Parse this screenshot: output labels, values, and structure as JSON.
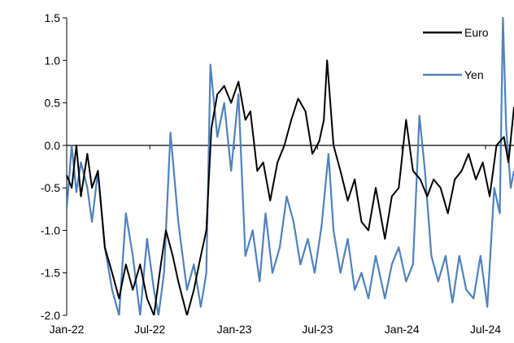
{
  "chart_data": {
    "type": "line",
    "title": "",
    "xlabel": "",
    "ylabel": "",
    "ylim": [
      -2.0,
      1.5
    ],
    "yticks": [
      1.5,
      1.0,
      0.5,
      0.0,
      -0.5,
      -1.0,
      -1.5,
      -2.0
    ],
    "ytick_labels": [
      "1.5",
      "1.0",
      "0.5",
      "0.0",
      "-0.5",
      "-1.0",
      "-1.5",
      "-2.0"
    ],
    "xlim": [
      "2022-01-01",
      "2024-09-01"
    ],
    "xticks": [
      "2022-01-01",
      "2022-07-01",
      "2023-01-01",
      "2023-07-01",
      "2024-01-01",
      "2024-07-01"
    ],
    "xtick_labels": [
      "Jan-22",
      "Jul-22",
      "Jan-23",
      "Jul-23",
      "Jan-24",
      "Jul-24"
    ],
    "zero_line": true,
    "grid": false,
    "legend": "top-right",
    "series": [
      {
        "name": "Euro",
        "color": "#000000",
        "points": [
          [
            "2022-01-01",
            -0.35
          ],
          [
            "2022-01-12",
            -0.5
          ],
          [
            "2022-01-22",
            0.0
          ],
          [
            "2022-02-01",
            -0.6
          ],
          [
            "2022-02-15",
            -0.1
          ],
          [
            "2022-02-25",
            -0.5
          ],
          [
            "2022-03-10",
            -0.3
          ],
          [
            "2022-03-25",
            -1.2
          ],
          [
            "2022-04-10",
            -1.5
          ],
          [
            "2022-04-25",
            -1.8
          ],
          [
            "2022-05-10",
            -1.4
          ],
          [
            "2022-05-25",
            -1.7
          ],
          [
            "2022-06-10",
            -1.4
          ],
          [
            "2022-06-25",
            -1.8
          ],
          [
            "2022-07-10",
            -2.0
          ],
          [
            "2022-07-25",
            -1.4
          ],
          [
            "2022-08-05",
            -1.0
          ],
          [
            "2022-08-20",
            -1.3
          ],
          [
            "2022-09-01",
            -1.6
          ],
          [
            "2022-09-20",
            -2.0
          ],
          [
            "2022-10-05",
            -1.7
          ],
          [
            "2022-10-20",
            -1.3
          ],
          [
            "2022-11-01",
            -1.0
          ],
          [
            "2022-11-12",
            0.2
          ],
          [
            "2022-11-25",
            0.6
          ],
          [
            "2022-12-10",
            0.7
          ],
          [
            "2022-12-25",
            0.5
          ],
          [
            "2023-01-10",
            0.75
          ],
          [
            "2023-01-25",
            0.3
          ],
          [
            "2023-02-05",
            0.4
          ],
          [
            "2023-02-20",
            -0.3
          ],
          [
            "2023-03-05",
            -0.2
          ],
          [
            "2023-03-20",
            -0.65
          ],
          [
            "2023-04-05",
            -0.2
          ],
          [
            "2023-04-20",
            0.0
          ],
          [
            "2023-05-05",
            0.3
          ],
          [
            "2023-05-20",
            0.55
          ],
          [
            "2023-06-05",
            0.4
          ],
          [
            "2023-06-20",
            -0.1
          ],
          [
            "2023-07-05",
            0.05
          ],
          [
            "2023-07-15",
            0.3
          ],
          [
            "2023-07-22",
            1.0
          ],
          [
            "2023-08-05",
            0.0
          ],
          [
            "2023-08-20",
            -0.3
          ],
          [
            "2023-09-05",
            -0.65
          ],
          [
            "2023-09-20",
            -0.4
          ],
          [
            "2023-10-05",
            -0.9
          ],
          [
            "2023-10-20",
            -1.0
          ],
          [
            "2023-11-05",
            -0.5
          ],
          [
            "2023-11-25",
            -1.1
          ],
          [
            "2023-12-10",
            -0.6
          ],
          [
            "2023-12-25",
            -0.5
          ],
          [
            "2024-01-10",
            0.3
          ],
          [
            "2024-01-25",
            -0.3
          ],
          [
            "2024-02-10",
            -0.4
          ],
          [
            "2024-02-25",
            -0.6
          ],
          [
            "2024-03-10",
            -0.4
          ],
          [
            "2024-03-25",
            -0.5
          ],
          [
            "2024-04-10",
            -0.8
          ],
          [
            "2024-04-25",
            -0.4
          ],
          [
            "2024-05-10",
            -0.3
          ],
          [
            "2024-05-25",
            -0.1
          ],
          [
            "2024-06-10",
            -0.4
          ],
          [
            "2024-06-25",
            -0.2
          ],
          [
            "2024-07-10",
            -0.6
          ],
          [
            "2024-07-25",
            0.0
          ],
          [
            "2024-08-10",
            0.1
          ],
          [
            "2024-08-20",
            -0.2
          ],
          [
            "2024-09-01",
            0.45
          ]
        ]
      },
      {
        "name": "Yen",
        "color": "#4f81bd",
        "points": [
          [
            "2022-01-01",
            -0.75
          ],
          [
            "2022-01-12",
            0.0
          ],
          [
            "2022-01-22",
            -0.55
          ],
          [
            "2022-02-01",
            -0.2
          ],
          [
            "2022-02-15",
            -0.5
          ],
          [
            "2022-02-25",
            -0.9
          ],
          [
            "2022-03-10",
            -0.3
          ],
          [
            "2022-03-25",
            -1.2
          ],
          [
            "2022-04-10",
            -1.7
          ],
          [
            "2022-04-25",
            -2.0
          ],
          [
            "2022-05-10",
            -0.8
          ],
          [
            "2022-05-25",
            -1.3
          ],
          [
            "2022-06-10",
            -2.0
          ],
          [
            "2022-06-25",
            -1.1
          ],
          [
            "2022-07-10",
            -1.7
          ],
          [
            "2022-07-20",
            -2.0
          ],
          [
            "2022-08-01",
            -1.5
          ],
          [
            "2022-08-15",
            0.15
          ],
          [
            "2022-09-01",
            -0.9
          ],
          [
            "2022-09-20",
            -1.7
          ],
          [
            "2022-10-05",
            -1.4
          ],
          [
            "2022-10-20",
            -1.9
          ],
          [
            "2022-11-01",
            -1.5
          ],
          [
            "2022-11-10",
            0.95
          ],
          [
            "2022-11-25",
            0.1
          ],
          [
            "2022-12-10",
            0.5
          ],
          [
            "2022-12-25",
            -0.3
          ],
          [
            "2023-01-10",
            0.6
          ],
          [
            "2023-01-25",
            -1.3
          ],
          [
            "2023-02-10",
            -1.0
          ],
          [
            "2023-02-25",
            -1.6
          ],
          [
            "2023-03-10",
            -0.8
          ],
          [
            "2023-03-25",
            -1.5
          ],
          [
            "2023-04-10",
            -1.2
          ],
          [
            "2023-04-25",
            -0.6
          ],
          [
            "2023-05-10",
            -0.9
          ],
          [
            "2023-05-25",
            -1.4
          ],
          [
            "2023-06-10",
            -1.1
          ],
          [
            "2023-06-25",
            -1.5
          ],
          [
            "2023-07-10",
            -0.95
          ],
          [
            "2023-07-25",
            -0.1
          ],
          [
            "2023-08-05",
            -1.0
          ],
          [
            "2023-08-20",
            -1.5
          ],
          [
            "2023-09-05",
            -1.1
          ],
          [
            "2023-09-20",
            -1.7
          ],
          [
            "2023-10-05",
            -1.5
          ],
          [
            "2023-10-20",
            -1.8
          ],
          [
            "2023-11-05",
            -1.3
          ],
          [
            "2023-11-25",
            -1.8
          ],
          [
            "2023-12-10",
            -1.4
          ],
          [
            "2023-12-25",
            -1.2
          ],
          [
            "2024-01-10",
            -1.6
          ],
          [
            "2024-01-25",
            -1.4
          ],
          [
            "2024-02-08",
            0.35
          ],
          [
            "2024-02-20",
            -0.3
          ],
          [
            "2024-03-05",
            -1.3
          ],
          [
            "2024-03-20",
            -1.6
          ],
          [
            "2024-04-05",
            -1.3
          ],
          [
            "2024-04-20",
            -1.85
          ],
          [
            "2024-05-05",
            -1.3
          ],
          [
            "2024-05-20",
            -1.7
          ],
          [
            "2024-06-05",
            -1.8
          ],
          [
            "2024-06-20",
            -1.3
          ],
          [
            "2024-07-05",
            -1.9
          ],
          [
            "2024-07-20",
            -0.5
          ],
          [
            "2024-08-01",
            -0.8
          ],
          [
            "2024-08-08",
            1.5
          ],
          [
            "2024-08-15",
            0.2
          ],
          [
            "2024-08-25",
            -0.5
          ],
          [
            "2024-09-01",
            -0.3
          ]
        ]
      }
    ]
  }
}
